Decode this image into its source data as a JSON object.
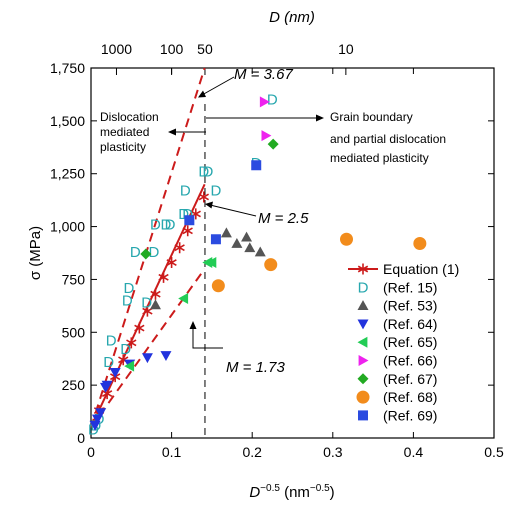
{
  "chart_data": {
    "type": "scatter",
    "xlabel": "D",
    "xlabel_sup": "−0.5",
    "xlabel_unit_pre": " (nm",
    "xlabel_unit_sup": "−0.5",
    "xlabel_unit_post": ")",
    "ylabel": "σ (MPa)",
    "top_xlabel": "D (nm)",
    "xlim": [
      0,
      0.5
    ],
    "ylim": [
      0,
      1750
    ],
    "x_ticks": [
      0,
      0.1,
      0.2,
      0.3,
      0.4,
      0.5
    ],
    "x_tick_labels": [
      "0",
      "0.1",
      "0.2",
      "0.3",
      "0.4",
      "0.5"
    ],
    "y_ticks": [
      0,
      250,
      500,
      750,
      1000,
      1250,
      1500,
      1750
    ],
    "y_tick_labels": [
      "0",
      "250",
      "500",
      "750",
      "1,000",
      "1,250",
      "1,500",
      "1,750"
    ],
    "top_ticks": [
      {
        "label": "1000",
        "x": 0.0316
      },
      {
        "label": "100",
        "x": 0.1
      },
      {
        "label": "50",
        "x": 0.1414
      },
      {
        "label": "10",
        "x": 0.3162
      }
    ],
    "threshold_x": 0.1414,
    "annotations": {
      "left_region": [
        "Dislocation",
        "mediated",
        "plasticity"
      ],
      "right_region": [
        "Grain boundary",
        "and partial dislocation",
        "mediated plasticity"
      ],
      "m_high": "M = 3.67",
      "m_mid": "M = 2.5",
      "m_low": "M = 1.73"
    },
    "m_lines": [
      {
        "name": "M = 3.67",
        "x": [
          0,
          0.141
        ],
        "y": [
          50,
          1750
        ],
        "style": "dashed"
      },
      {
        "name": "M = 2.5",
        "x": [
          0,
          0.141
        ],
        "y": [
          50,
          1200
        ],
        "style": "solid"
      },
      {
        "name": "M = 1.73",
        "x": [
          0,
          0.141
        ],
        "y": [
          50,
          800
        ],
        "style": "dashed"
      }
    ],
    "series": [
      {
        "name": "Equation (1)",
        "marker": "star",
        "color": "#cc1b1b",
        "x": [
          0.01,
          0.02,
          0.03,
          0.04,
          0.05,
          0.06,
          0.07,
          0.08,
          0.09,
          0.1,
          0.11,
          0.12,
          0.13,
          0.14
        ],
        "y": [
          130,
          210,
          290,
          370,
          450,
          520,
          600,
          680,
          760,
          830,
          900,
          980,
          1060,
          1140
        ]
      },
      {
        "name": "(Ref. 15)",
        "marker": "D",
        "color": "#27a7ae",
        "x": [
          0.003,
          0.006,
          0.01,
          0.022,
          0.025,
          0.043,
          0.045,
          0.047,
          0.055,
          0.069,
          0.078,
          0.08,
          0.093,
          0.098,
          0.115,
          0.117,
          0.14,
          0.145,
          0.155,
          0.12,
          0.205,
          0.225
        ],
        "y": [
          40,
          60,
          90,
          360,
          460,
          420,
          650,
          710,
          880,
          640,
          880,
          1010,
          1010,
          1010,
          1060,
          1170,
          1260,
          1260,
          1170,
          1060,
          1300,
          1600
        ]
      },
      {
        "name": "(Ref. 53)",
        "marker": "triangle-up",
        "color": "#555555",
        "x": [
          0.08,
          0.168,
          0.181,
          0.193,
          0.197,
          0.21
        ],
        "y": [
          630,
          970,
          920,
          950,
          900,
          880
        ]
      },
      {
        "name": "(Ref. 64)",
        "marker": "triangle-down",
        "color": "#2233dd",
        "x": [
          0.005,
          0.008,
          0.012,
          0.018,
          0.02,
          0.03,
          0.048,
          0.07,
          0.093
        ],
        "y": [
          60,
          90,
          120,
          240,
          250,
          310,
          350,
          380,
          390
        ]
      },
      {
        "name": "(Ref. 65)",
        "marker": "triangle-left",
        "color": "#22cc55",
        "x": [
          0.048,
          0.115,
          0.145,
          0.15
        ],
        "y": [
          340,
          660,
          830,
          830
        ]
      },
      {
        "name": "(Ref. 66)",
        "marker": "triangle-right",
        "color": "#ee22ee",
        "x": [
          0.215,
          0.217
        ],
        "y": [
          1590,
          1430
        ]
      },
      {
        "name": "(Ref. 67)",
        "marker": "diamond",
        "color": "#22aa22",
        "x": [
          0.068,
          0.226
        ],
        "y": [
          870,
          1390
        ]
      },
      {
        "name": "(Ref. 68)",
        "marker": "circle",
        "color": "#f28c1c",
        "x": [
          0.158,
          0.223,
          0.317,
          0.408
        ],
        "y": [
          720,
          820,
          940,
          920
        ]
      },
      {
        "name": "(Ref. 69)",
        "marker": "square",
        "color": "#2b4be0",
        "x": [
          0.122,
          0.155,
          0.205
        ],
        "y": [
          1030,
          940,
          1290
        ]
      }
    ],
    "legend_position": "center-right",
    "grid": false
  }
}
